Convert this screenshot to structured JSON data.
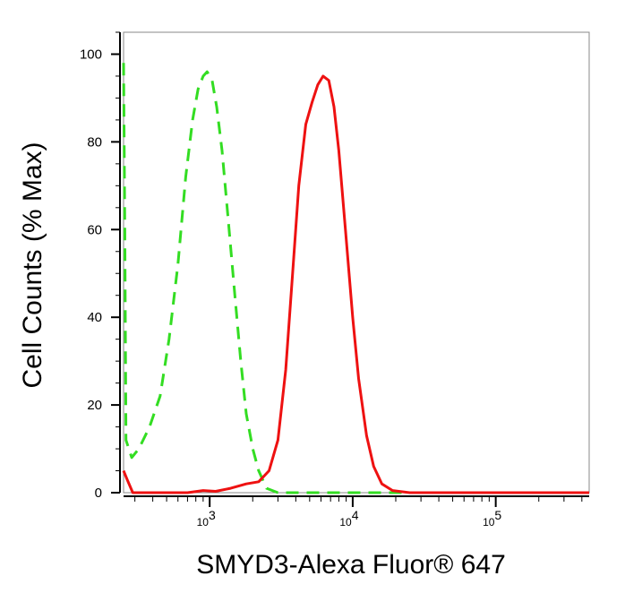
{
  "chart_data": {
    "type": "line",
    "xlabel": "SMYD3-Alexa Fluor® 647",
    "ylabel": "Cell Counts (% Max)",
    "x_scale": "log",
    "xlim": [
      250,
      450000
    ],
    "ylim": [
      0,
      105
    ],
    "y_ticks": [
      0,
      20,
      40,
      60,
      80,
      100
    ],
    "x_ticks": [
      {
        "value": 1000,
        "base": "10",
        "exp": "3"
      },
      {
        "value": 10000,
        "base": "10",
        "exp": "4"
      },
      {
        "value": 100000,
        "base": "10",
        "exp": "5"
      }
    ],
    "grid": false,
    "legend": "none",
    "series": [
      {
        "color": "#33dd22",
        "style": "dashed",
        "points": [
          [
            250,
            98
          ],
          [
            255,
            60
          ],
          [
            260,
            12
          ],
          [
            285,
            8
          ],
          [
            320,
            10
          ],
          [
            380,
            15
          ],
          [
            450,
            22
          ],
          [
            520,
            35
          ],
          [
            600,
            52
          ],
          [
            680,
            72
          ],
          [
            760,
            85
          ],
          [
            830,
            92
          ],
          [
            900,
            95
          ],
          [
            960,
            96
          ],
          [
            1040,
            94
          ],
          [
            1120,
            88
          ],
          [
            1220,
            78
          ],
          [
            1350,
            62
          ],
          [
            1500,
            45
          ],
          [
            1650,
            30
          ],
          [
            1800,
            18
          ],
          [
            2000,
            10
          ],
          [
            2200,
            5
          ],
          [
            2500,
            1
          ],
          [
            3000,
            0
          ],
          [
            450000,
            0
          ]
        ]
      },
      {
        "color": "#ee1111",
        "style": "solid",
        "points": [
          [
            250,
            5
          ],
          [
            265,
            3
          ],
          [
            290,
            0
          ],
          [
            500,
            0
          ],
          [
            700,
            0
          ],
          [
            900,
            0.5
          ],
          [
            1100,
            0.3
          ],
          [
            1400,
            1
          ],
          [
            1800,
            2
          ],
          [
            2200,
            2.5
          ],
          [
            2600,
            5
          ],
          [
            3000,
            12
          ],
          [
            3400,
            28
          ],
          [
            3800,
            50
          ],
          [
            4200,
            70
          ],
          [
            4700,
            84
          ],
          [
            5200,
            89
          ],
          [
            5700,
            93
          ],
          [
            6200,
            95
          ],
          [
            6800,
            94
          ],
          [
            7400,
            88
          ],
          [
            8000,
            78
          ],
          [
            9000,
            58
          ],
          [
            10000,
            40
          ],
          [
            11000,
            26
          ],
          [
            12500,
            13
          ],
          [
            14000,
            6
          ],
          [
            16000,
            2
          ],
          [
            19000,
            0.5
          ],
          [
            25000,
            0
          ],
          [
            450000,
            0
          ]
        ]
      }
    ]
  }
}
